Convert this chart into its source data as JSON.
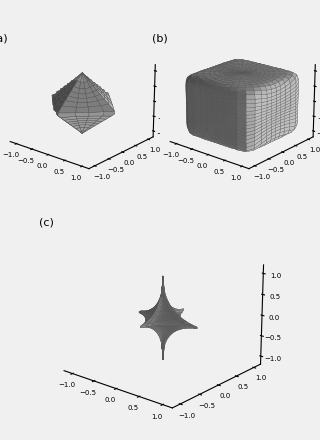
{
  "title_a": "(a)",
  "title_b": "(b)",
  "title_c": "(c)",
  "p_a": 1.0,
  "p_b": 10.0,
  "p_c": 0.5,
  "n_points": 50,
  "axis_lim": [
    -1.2,
    1.2
  ],
  "tick_vals": [
    -1.0,
    -0.5,
    0.0,
    0.5,
    1.0
  ],
  "elev": 20,
  "azim": -50,
  "face_color_light": "#d8d8d8",
  "face_color_dark": "#404040",
  "edge_color": "#555555",
  "background_color": "#f0f0f0"
}
